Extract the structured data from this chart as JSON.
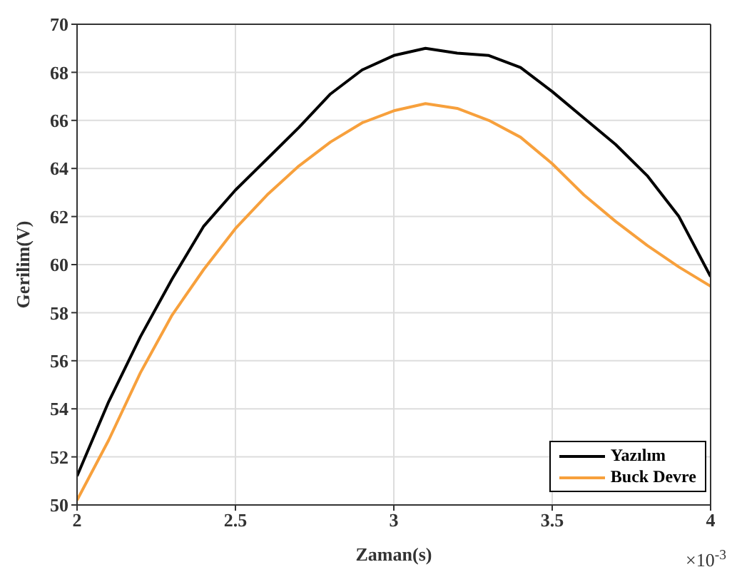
{
  "chart_data": {
    "type": "line",
    "xlabel": "Zaman(s)",
    "ylabel": "Gerilim(V)",
    "x": [
      2.0,
      2.1,
      2.2,
      2.3,
      2.4,
      2.5,
      2.6,
      2.7,
      2.8,
      2.9,
      3.0,
      3.1,
      3.2,
      3.3,
      3.4,
      3.5,
      3.6,
      3.7,
      3.8,
      3.9,
      4.0
    ],
    "series": [
      {
        "name": "Yazılım",
        "color": "#000000",
        "values": [
          51.2,
          54.3,
          57.0,
          59.4,
          61.6,
          63.1,
          64.4,
          65.7,
          67.1,
          68.1,
          68.7,
          69.0,
          68.8,
          68.7,
          68.2,
          67.2,
          66.1,
          65.0,
          63.7,
          62.0,
          59.5
        ]
      },
      {
        "name": "Buck Devre",
        "color": "#f7a03c",
        "values": [
          50.2,
          52.7,
          55.5,
          57.9,
          59.8,
          61.5,
          62.9,
          64.1,
          65.1,
          65.9,
          66.4,
          66.7,
          66.5,
          66.0,
          65.3,
          64.2,
          62.9,
          61.8,
          60.8,
          59.9,
          59.1
        ]
      }
    ],
    "xlim": [
      2,
      4
    ],
    "xticks": [
      2,
      2.5,
      3,
      3.5,
      4
    ],
    "ylim": [
      50,
      70
    ],
    "yticks": [
      50,
      52,
      54,
      56,
      58,
      60,
      62,
      64,
      66,
      68,
      70
    ],
    "annotations": [
      "×10$^{-3}$"
    ],
    "grid": true,
    "legend": "bottom right",
    "line_style": "solid",
    "marker": "none"
  }
}
